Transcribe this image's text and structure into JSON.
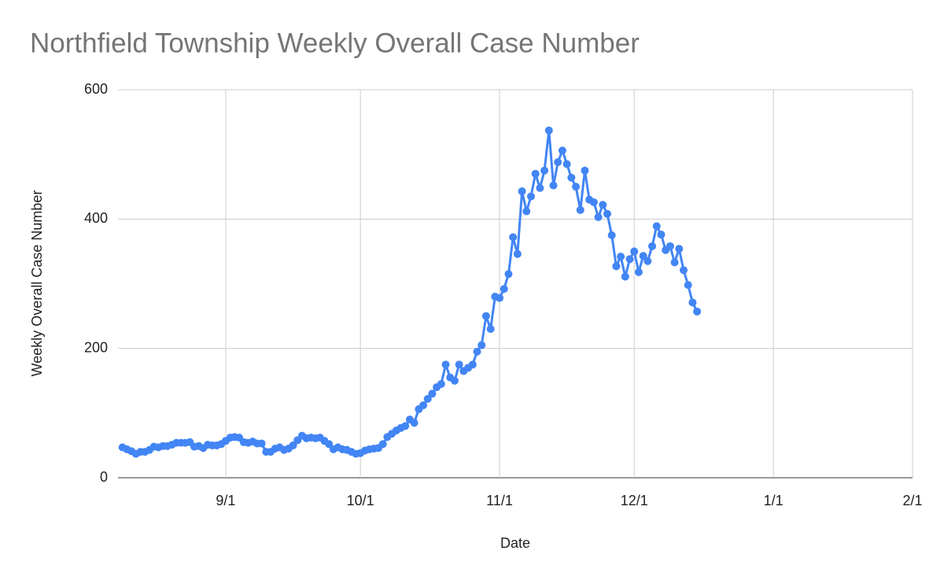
{
  "chart_data": {
    "type": "line",
    "title": "Northfield Township Weekly Overall Case Number",
    "x_label": "Date",
    "y_label": "Weekly Overall Case Number",
    "x": [
      "8/9",
      "8/10",
      "8/11",
      "8/12",
      "8/13",
      "8/14",
      "8/15",
      "8/16",
      "8/17",
      "8/18",
      "8/19",
      "8/20",
      "8/21",
      "8/22",
      "8/23",
      "8/24",
      "8/25",
      "8/26",
      "8/27",
      "8/28",
      "8/29",
      "8/30",
      "8/31",
      "9/1",
      "9/2",
      "9/3",
      "9/4",
      "9/5",
      "9/6",
      "9/7",
      "9/8",
      "9/9",
      "9/10",
      "9/11",
      "9/12",
      "9/13",
      "9/14",
      "9/15",
      "9/16",
      "9/17",
      "9/18",
      "9/19",
      "9/20",
      "9/21",
      "9/22",
      "9/23",
      "9/24",
      "9/25",
      "9/26",
      "9/27",
      "9/28",
      "9/29",
      "9/30",
      "10/1",
      "10/2",
      "10/3",
      "10/4",
      "10/5",
      "10/6",
      "10/7",
      "10/8",
      "10/9",
      "10/10",
      "10/11",
      "10/12",
      "10/13",
      "10/14",
      "10/15",
      "10/16",
      "10/17",
      "10/18",
      "10/19",
      "10/20",
      "10/21",
      "10/22",
      "10/23",
      "10/24",
      "10/25",
      "10/26",
      "10/27",
      "10/28",
      "10/29",
      "10/30",
      "10/31",
      "11/1",
      "11/2",
      "11/3",
      "11/4",
      "11/5",
      "11/6",
      "11/7",
      "11/8",
      "11/9",
      "11/10",
      "11/11",
      "11/12",
      "11/13",
      "11/14",
      "11/15",
      "11/16",
      "11/17",
      "11/18",
      "11/19",
      "11/20",
      "11/21",
      "11/22",
      "11/23",
      "11/24",
      "11/25",
      "11/26",
      "11/27",
      "11/28",
      "11/29",
      "11/30",
      "12/1",
      "12/2",
      "12/3",
      "12/4",
      "12/5",
      "12/6",
      "12/7",
      "12/8",
      "12/9",
      "12/10",
      "12/11",
      "12/12",
      "12/13",
      "12/14",
      "12/15"
    ],
    "series": [
      {
        "name": "Weekly Overall Case Number",
        "color": "#4285f4",
        "values": [
          47,
          44,
          41,
          37,
          40,
          40,
          43,
          48,
          47,
          49,
          49,
          51,
          54,
          54,
          54,
          55,
          48,
          49,
          46,
          51,
          50,
          50,
          52,
          57,
          62,
          63,
          62,
          55,
          54,
          56,
          53,
          53,
          40,
          40,
          45,
          47,
          43,
          45,
          50,
          58,
          65,
          61,
          62,
          61,
          62,
          57,
          52,
          44,
          47,
          44,
          43,
          40,
          37,
          38,
          42,
          44,
          45,
          46,
          52,
          63,
          68,
          73,
          77,
          80,
          90,
          85,
          106,
          112,
          122,
          130,
          140,
          145,
          175,
          155,
          150,
          175,
          165,
          170,
          175,
          195,
          205,
          250,
          230,
          280,
          278,
          292,
          315,
          372,
          346,
          443,
          412,
          435,
          470,
          448,
          475,
          537,
          452,
          488,
          506,
          485,
          464,
          450,
          414,
          475,
          430,
          426,
          403,
          422,
          408,
          375,
          327,
          342,
          311,
          338,
          350,
          318,
          343,
          335,
          358,
          389,
          376,
          352,
          358,
          333,
          354,
          321,
          298,
          271,
          257
        ]
      }
    ],
    "xlim": [
      "8/8",
      "2/1"
    ],
    "xticks": [
      "9/1",
      "10/1",
      "11/1",
      "12/1",
      "1/1",
      "2/1"
    ],
    "ylim": [
      0,
      600
    ],
    "yticks": [
      0,
      200,
      400,
      600
    ],
    "grid": true
  }
}
